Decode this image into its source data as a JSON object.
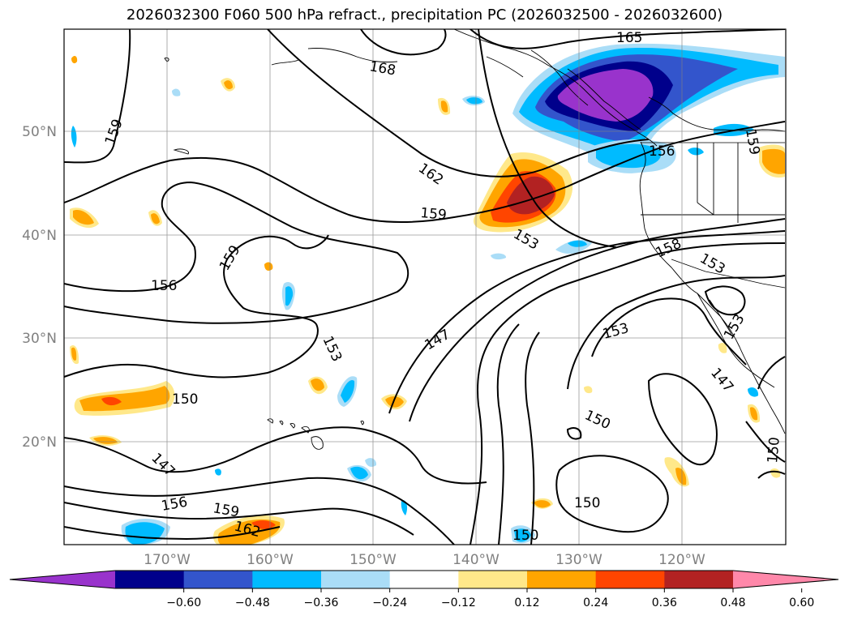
{
  "title": "2026032300 F060 500 hPa refract., precipitation PC (2026032500 - 2026032600)",
  "lat_labels": [
    "50°N",
    "40°N",
    "30°N",
    "20°N"
  ],
  "lon_labels": [
    "170°W",
    "160°W",
    "150°W",
    "140°W",
    "130°W",
    "120°W"
  ],
  "contour_labels": [
    "165",
    "168",
    "159",
    "162",
    "159",
    "156",
    "159",
    "153",
    "153",
    "156",
    "158",
    "153",
    "153",
    "159",
    "147",
    "153",
    "147",
    "150",
    "150",
    "147",
    "156",
    "159",
    "162",
    "150",
    "150",
    "150"
  ],
  "colorbar": {
    "colors": [
      "#9933cc",
      "#00008b",
      "#3355cc",
      "#00bbff",
      "#aaddf7",
      "#ffffff",
      "#ffe88a",
      "#ffa500",
      "#ff4500",
      "#b22222",
      "#ff88aa"
    ],
    "ticks": [
      "−0.60",
      "−0.48",
      "−0.36",
      "−0.24",
      "−0.12",
      "0.12",
      "0.24",
      "0.36",
      "0.48",
      "0.60"
    ]
  }
}
